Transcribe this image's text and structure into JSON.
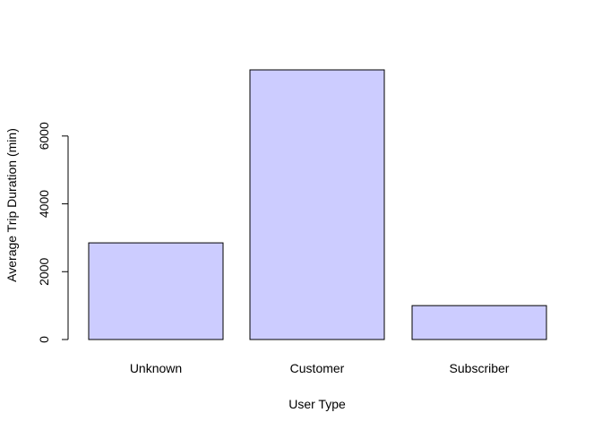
{
  "chart_data": {
    "type": "bar",
    "title": "",
    "xlabel": "User Type",
    "ylabel": "Average Trip Duration (min)",
    "categories": [
      "Unknown",
      "Customer",
      "Subscriber"
    ],
    "values": [
      2850,
      7950,
      1000
    ],
    "ylim": [
      0,
      7950
    ],
    "yticks": [
      0,
      2000,
      4000,
      6000
    ],
    "grid": false,
    "legend": "none",
    "bar_color": "#ccccff",
    "bar_edge_color": "#000000"
  }
}
